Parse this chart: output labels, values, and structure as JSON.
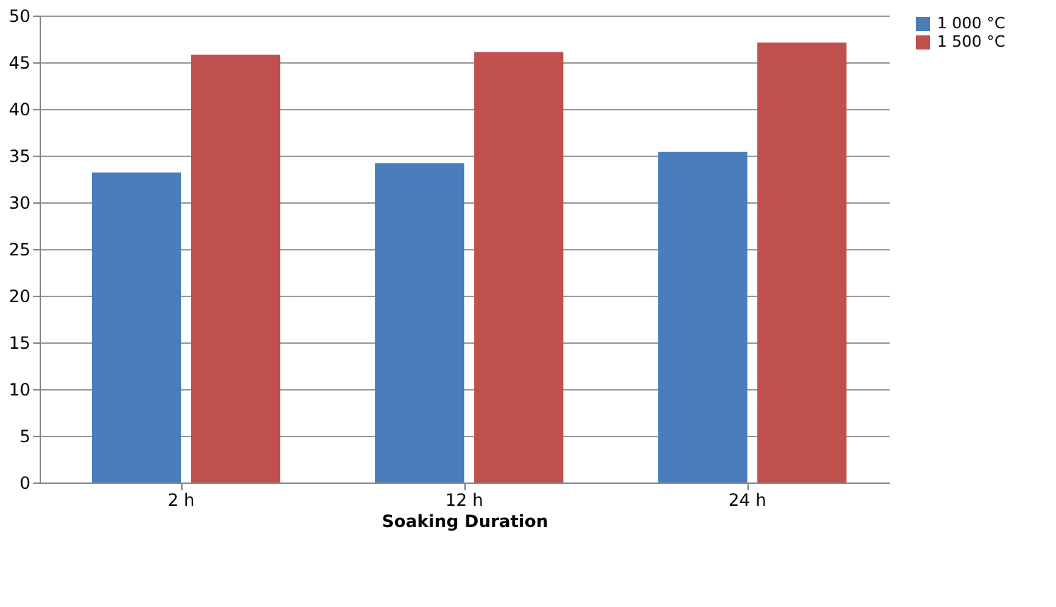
{
  "chart_data": {
    "type": "bar",
    "xlabel": "Soaking Duration",
    "categories": [
      "2 h",
      "12 h",
      "24 h"
    ],
    "series": [
      {
        "name": "1 000 °C",
        "color": "#4a7ebb",
        "values": [
          33.2,
          34.2,
          35.4
        ]
      },
      {
        "name": "1 500 °C",
        "color": "#c0504d",
        "values": [
          45.8,
          46.1,
          47.1
        ]
      }
    ],
    "ylim": [
      0,
      50
    ],
    "yticks": [
      0,
      5,
      10,
      15,
      20,
      25,
      30,
      35,
      40,
      45,
      50
    ],
    "grid": "y",
    "legend": "right"
  }
}
